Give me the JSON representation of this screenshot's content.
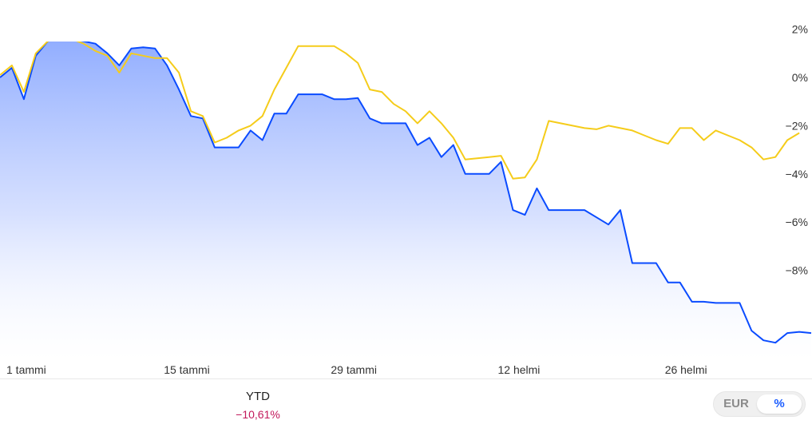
{
  "chart_data": {
    "type": "line",
    "y_unit": "%",
    "ylim": [
      -11,
      2.5
    ],
    "y_ticks": [
      {
        "value": 2,
        "label": "2%"
      },
      {
        "value": 0,
        "label": "0%"
      },
      {
        "value": -2,
        "label": "−2%"
      },
      {
        "value": -4,
        "label": "−4%"
      },
      {
        "value": -6,
        "label": "−6%"
      },
      {
        "value": -8,
        "label": "−8%"
      }
    ],
    "x_ticks": [
      {
        "day": 0,
        "label": "1 tammi"
      },
      {
        "day": 14,
        "label": "15 tammi"
      },
      {
        "day": 28,
        "label": "29 tammi"
      },
      {
        "day": 42,
        "label": "12 helmi"
      },
      {
        "day": 56,
        "label": "26 helmi"
      }
    ],
    "xlim": [
      0,
      68
    ],
    "legend": "none",
    "grid": false,
    "series": [
      {
        "color": "#0a4bff",
        "fill": true,
        "points": [
          [
            0,
            0.0
          ],
          [
            1,
            0.4
          ],
          [
            2,
            -0.9
          ],
          [
            3,
            0.9
          ],
          [
            4,
            1.5
          ],
          [
            5,
            1.7
          ],
          [
            6,
            1.6
          ],
          [
            7,
            1.5
          ],
          [
            8,
            1.4
          ],
          [
            9,
            1.0
          ],
          [
            10,
            0.5
          ],
          [
            11,
            1.2
          ],
          [
            12,
            1.25
          ],
          [
            13,
            1.2
          ],
          [
            14,
            0.5
          ],
          [
            15,
            -0.5
          ],
          [
            16,
            -1.6
          ],
          [
            17,
            -1.7
          ],
          [
            18,
            -2.9
          ],
          [
            19,
            -2.9
          ],
          [
            20,
            -2.9
          ],
          [
            21,
            -2.2
          ],
          [
            22,
            -2.6
          ],
          [
            23,
            -1.5
          ],
          [
            24,
            -1.5
          ],
          [
            25,
            -0.7
          ],
          [
            26,
            -0.7
          ],
          [
            27,
            -0.7
          ],
          [
            28,
            -0.9
          ],
          [
            29,
            -0.9
          ],
          [
            30,
            -0.85
          ],
          [
            31,
            -1.7
          ],
          [
            32,
            -1.9
          ],
          [
            33,
            -1.9
          ],
          [
            34,
            -1.9
          ],
          [
            35,
            -2.8
          ],
          [
            36,
            -2.5
          ],
          [
            37,
            -3.3
          ],
          [
            38,
            -2.8
          ],
          [
            39,
            -4.0
          ],
          [
            40,
            -4.0
          ],
          [
            41,
            -4.0
          ],
          [
            42,
            -3.5
          ],
          [
            43,
            -5.5
          ],
          [
            44,
            -5.7
          ],
          [
            45,
            -4.6
          ],
          [
            46,
            -5.5
          ],
          [
            47,
            -5.5
          ],
          [
            48,
            -5.5
          ],
          [
            49,
            -5.5
          ],
          [
            50,
            -5.8
          ],
          [
            51,
            -6.1
          ],
          [
            52,
            -5.5
          ],
          [
            53,
            -7.7
          ],
          [
            54,
            -7.7
          ],
          [
            55,
            -7.7
          ],
          [
            56,
            -8.5
          ],
          [
            57,
            -8.5
          ],
          [
            58,
            -9.3
          ],
          [
            59,
            -9.3
          ],
          [
            60,
            -9.35
          ],
          [
            61,
            -9.35
          ],
          [
            62,
            -9.35
          ],
          [
            63,
            -10.5
          ],
          [
            64,
            -10.9
          ],
          [
            65,
            -11.0
          ],
          [
            66,
            -10.6
          ],
          [
            67,
            -10.55
          ],
          [
            68,
            -10.6
          ]
        ]
      },
      {
        "color": "#f5cc1a",
        "fill": false,
        "points": [
          [
            0,
            0.1
          ],
          [
            1,
            0.5
          ],
          [
            2,
            -0.6
          ],
          [
            3,
            1.0
          ],
          [
            4,
            1.5
          ],
          [
            5,
            1.7
          ],
          [
            6,
            1.6
          ],
          [
            7,
            1.4
          ],
          [
            8,
            1.1
          ],
          [
            9,
            0.9
          ],
          [
            10,
            0.2
          ],
          [
            11,
            1.0
          ],
          [
            12,
            0.9
          ],
          [
            13,
            0.8
          ],
          [
            14,
            0.8
          ],
          [
            15,
            0.2
          ],
          [
            16,
            -1.4
          ],
          [
            17,
            -1.6
          ],
          [
            18,
            -2.7
          ],
          [
            19,
            -2.5
          ],
          [
            20,
            -2.2
          ],
          [
            21,
            -2.0
          ],
          [
            22,
            -1.6
          ],
          [
            23,
            -0.5
          ],
          [
            24,
            0.4
          ],
          [
            25,
            1.3
          ],
          [
            26,
            1.3
          ],
          [
            27,
            1.3
          ],
          [
            28,
            1.3
          ],
          [
            29,
            1.0
          ],
          [
            30,
            0.6
          ],
          [
            31,
            -0.5
          ],
          [
            32,
            -0.6
          ],
          [
            33,
            -1.1
          ],
          [
            34,
            -1.4
          ],
          [
            35,
            -1.9
          ],
          [
            36,
            -1.4
          ],
          [
            37,
            -1.9
          ],
          [
            38,
            -2.5
          ],
          [
            39,
            -3.4
          ],
          [
            40,
            -3.35
          ],
          [
            41,
            -3.3
          ],
          [
            42,
            -3.25
          ],
          [
            43,
            -4.2
          ],
          [
            44,
            -4.15
          ],
          [
            45,
            -3.4
          ],
          [
            46,
            -1.8
          ],
          [
            47,
            -1.9
          ],
          [
            48,
            -2.0
          ],
          [
            49,
            -2.1
          ],
          [
            50,
            -2.15
          ],
          [
            51,
            -2.0
          ],
          [
            52,
            -2.1
          ],
          [
            53,
            -2.2
          ],
          [
            54,
            -2.4
          ],
          [
            55,
            -2.6
          ],
          [
            56,
            -2.75
          ],
          [
            57,
            -2.1
          ],
          [
            58,
            -2.1
          ],
          [
            59,
            -2.6
          ],
          [
            60,
            -2.2
          ],
          [
            61,
            -2.4
          ],
          [
            62,
            -2.6
          ],
          [
            63,
            -2.9
          ],
          [
            64,
            -3.4
          ],
          [
            65,
            -3.3
          ],
          [
            66,
            -2.6
          ],
          [
            67,
            -2.3
          ]
        ]
      }
    ]
  },
  "summary": {
    "ytd_label": "YTD",
    "ytd_value": "−10,61%",
    "ytd_color": "#c2185b"
  },
  "toggle": {
    "eur_label": "EUR",
    "pct_label": "%",
    "selected": "%"
  }
}
